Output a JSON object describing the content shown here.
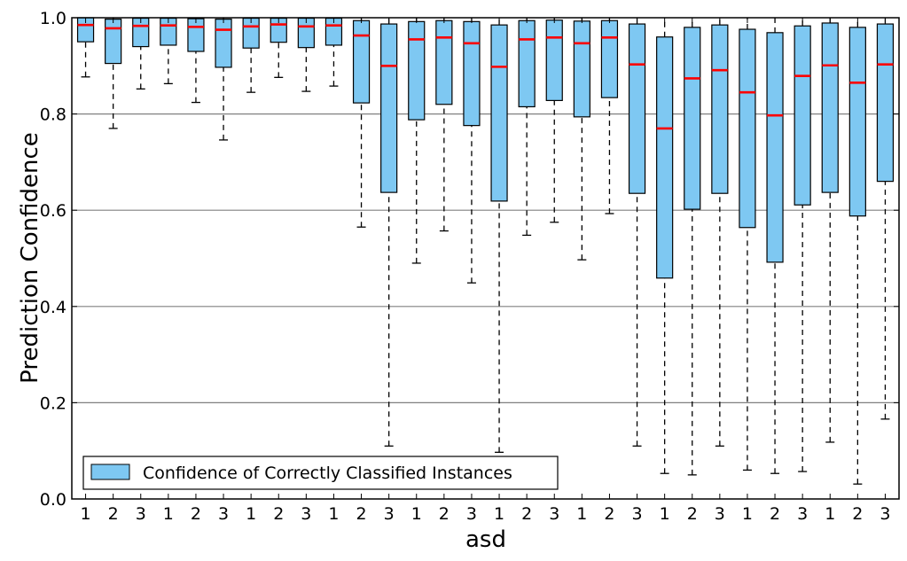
{
  "chart_data": {
    "type": "boxplot",
    "xlabel": "asd",
    "ylabel": "Prediction Confidence",
    "ylim": [
      0.0,
      1.0
    ],
    "yticks": [
      "0.0",
      "0.2",
      "0.4",
      "0.6",
      "0.8",
      "1.0"
    ],
    "grid": "horizontal",
    "legend": {
      "label": "Confidence of Correctly Classified Instances",
      "placement": "lower-left"
    },
    "colors": {
      "box": "#7ec8f2",
      "median": "#ff0000",
      "grid": "#808080"
    },
    "categories": [
      "1",
      "2",
      "3",
      "1",
      "2",
      "3",
      "1",
      "2",
      "3",
      "1",
      "2",
      "3",
      "1",
      "2",
      "3",
      "1",
      "2",
      "3",
      "1",
      "2",
      "3",
      "1",
      "2",
      "3",
      "1",
      "2",
      "3",
      "1",
      "2",
      "3"
    ],
    "boxes": [
      {
        "label": "1",
        "whisker_low": 0.877,
        "q1": 0.95,
        "median": 0.985,
        "q3": 1.0,
        "whisker_high": 1.0
      },
      {
        "label": "2",
        "whisker_low": 0.77,
        "q1": 0.905,
        "median": 0.978,
        "q3": 0.997,
        "whisker_high": 1.0
      },
      {
        "label": "3",
        "whisker_low": 0.852,
        "q1": 0.94,
        "median": 0.983,
        "q3": 0.999,
        "whisker_high": 1.0
      },
      {
        "label": "1",
        "whisker_low": 0.863,
        "q1": 0.943,
        "median": 0.984,
        "q3": 0.999,
        "whisker_high": 1.0
      },
      {
        "label": "2",
        "whisker_low": 0.824,
        "q1": 0.93,
        "median": 0.981,
        "q3": 0.998,
        "whisker_high": 1.0
      },
      {
        "label": "3",
        "whisker_low": 0.746,
        "q1": 0.897,
        "median": 0.975,
        "q3": 0.997,
        "whisker_high": 1.0
      },
      {
        "label": "1",
        "whisker_low": 0.845,
        "q1": 0.937,
        "median": 0.982,
        "q3": 0.999,
        "whisker_high": 1.0
      },
      {
        "label": "2",
        "whisker_low": 0.876,
        "q1": 0.949,
        "median": 0.986,
        "q3": 0.999,
        "whisker_high": 1.0
      },
      {
        "label": "3",
        "whisker_low": 0.847,
        "q1": 0.938,
        "median": 0.982,
        "q3": 0.999,
        "whisker_high": 1.0
      },
      {
        "label": "1",
        "whisker_low": 0.858,
        "q1": 0.943,
        "median": 0.984,
        "q3": 0.999,
        "whisker_high": 1.0
      },
      {
        "label": "2",
        "whisker_low": 0.565,
        "q1": 0.823,
        "median": 0.963,
        "q3": 0.994,
        "whisker_high": 1.0
      },
      {
        "label": "3",
        "whisker_low": 0.11,
        "q1": 0.637,
        "median": 0.9,
        "q3": 0.987,
        "whisker_high": 1.0
      },
      {
        "label": "1",
        "whisker_low": 0.49,
        "q1": 0.788,
        "median": 0.955,
        "q3": 0.992,
        "whisker_high": 1.0
      },
      {
        "label": "2",
        "whisker_low": 0.557,
        "q1": 0.82,
        "median": 0.959,
        "q3": 0.994,
        "whisker_high": 1.0
      },
      {
        "label": "3",
        "whisker_low": 0.449,
        "q1": 0.776,
        "median": 0.947,
        "q3": 0.992,
        "whisker_high": 1.0
      },
      {
        "label": "1",
        "whisker_low": 0.097,
        "q1": 0.619,
        "median": 0.898,
        "q3": 0.985,
        "whisker_high": 1.0
      },
      {
        "label": "2",
        "whisker_low": 0.548,
        "q1": 0.815,
        "median": 0.955,
        "q3": 0.994,
        "whisker_high": 1.0
      },
      {
        "label": "3",
        "whisker_low": 0.575,
        "q1": 0.828,
        "median": 0.959,
        "q3": 0.995,
        "whisker_high": 1.0
      },
      {
        "label": "1",
        "whisker_low": 0.497,
        "q1": 0.794,
        "median": 0.947,
        "q3": 0.993,
        "whisker_high": 1.0
      },
      {
        "label": "2",
        "whisker_low": 0.593,
        "q1": 0.834,
        "median": 0.959,
        "q3": 0.994,
        "whisker_high": 1.0
      },
      {
        "label": "3",
        "whisker_low": 0.11,
        "q1": 0.635,
        "median": 0.903,
        "q3": 0.987,
        "whisker_high": 1.0
      },
      {
        "label": "1",
        "whisker_low": 0.053,
        "q1": 0.459,
        "median": 0.77,
        "q3": 0.96,
        "whisker_high": 1.0
      },
      {
        "label": "2",
        "whisker_low": 0.05,
        "q1": 0.602,
        "median": 0.874,
        "q3": 0.98,
        "whisker_high": 1.0
      },
      {
        "label": "3",
        "whisker_low": 0.11,
        "q1": 0.635,
        "median": 0.891,
        "q3": 0.985,
        "whisker_high": 1.0
      },
      {
        "label": "1",
        "whisker_low": 0.06,
        "q1": 0.564,
        "median": 0.845,
        "q3": 0.976,
        "whisker_high": 1.0
      },
      {
        "label": "2",
        "whisker_low": 0.053,
        "q1": 0.492,
        "median": 0.797,
        "q3": 0.969,
        "whisker_high": 1.0
      },
      {
        "label": "3",
        "whisker_low": 0.057,
        "q1": 0.611,
        "median": 0.879,
        "q3": 0.983,
        "whisker_high": 1.0
      },
      {
        "label": "1",
        "whisker_low": 0.118,
        "q1": 0.637,
        "median": 0.901,
        "q3": 0.989,
        "whisker_high": 1.0
      },
      {
        "label": "2",
        "whisker_low": 0.031,
        "q1": 0.588,
        "median": 0.865,
        "q3": 0.98,
        "whisker_high": 1.0
      },
      {
        "label": "3",
        "whisker_low": 0.166,
        "q1": 0.66,
        "median": 0.903,
        "q3": 0.987,
        "whisker_high": 1.0
      }
    ]
  }
}
